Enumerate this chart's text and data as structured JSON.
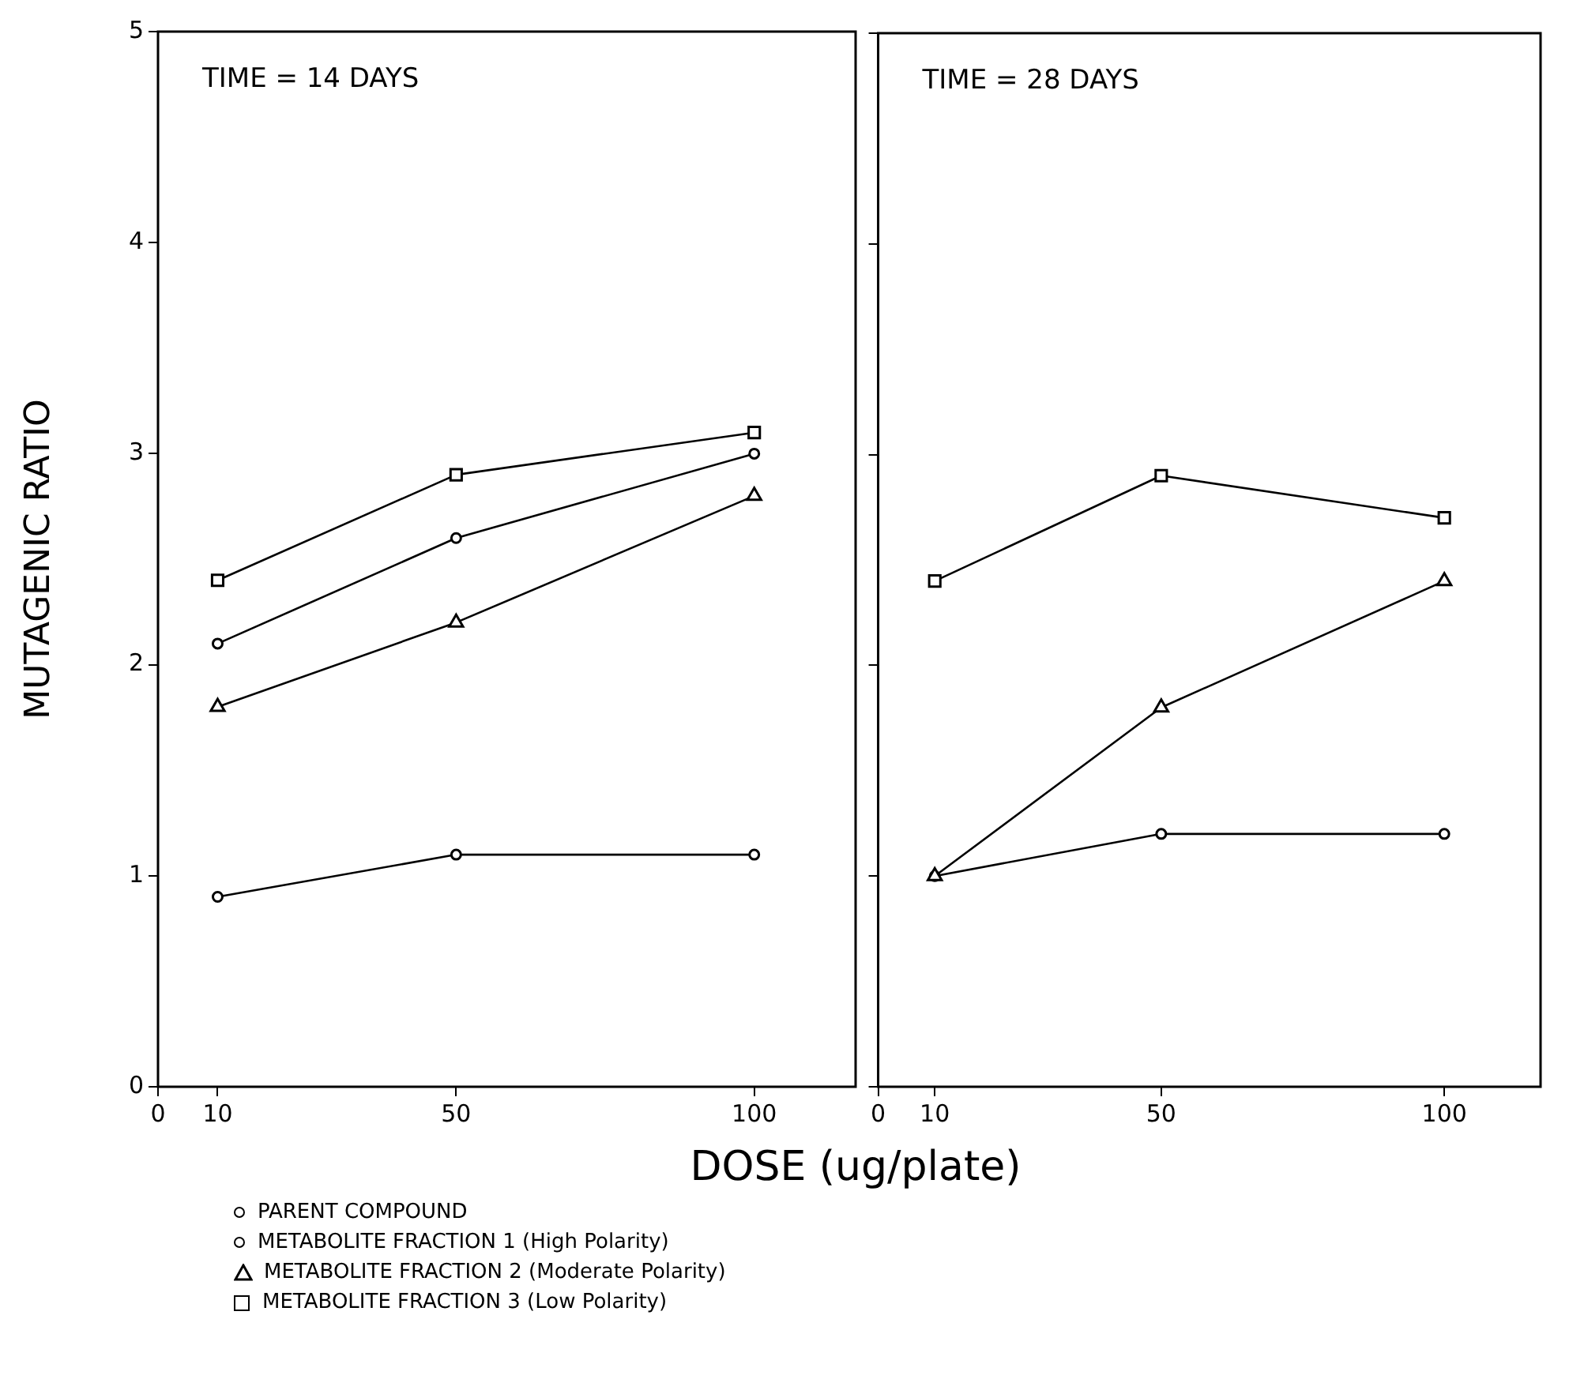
{
  "chart_data": [
    {
      "type": "line",
      "ylabel": "MUTAGENIC RATIO",
      "xlabel": "DOSE (ug/plate)",
      "annotations": [
        "TIME = 14 DAYS"
      ],
      "x": [
        10,
        50,
        100
      ],
      "xlim": [
        0,
        117
      ],
      "xticks": [
        0,
        10,
        50,
        100
      ],
      "ylim": [
        0,
        5
      ],
      "yticks": [
        0,
        1,
        2,
        3,
        4,
        5
      ],
      "grid": false,
      "legend": "bottom",
      "series": [
        {
          "name": "PARENT COMPOUND",
          "color": "#000000",
          "marker": "circle",
          "values": [
            2.1,
            2.6,
            3.0
          ]
        },
        {
          "name": "METABOLITE FRACTION 1 (High Polarity)",
          "color": "#000000",
          "marker": "circle",
          "values": [
            0.9,
            1.1,
            1.1
          ]
        },
        {
          "name": "METABOLITE FRACTION 2 (Moderate Polarity)",
          "color": "#000000",
          "marker": "triangle",
          "values": [
            1.8,
            2.2,
            2.8
          ]
        },
        {
          "name": "METABOLITE FRACTION 3 (Low Polarity)",
          "color": "#000000",
          "marker": "square",
          "values": [
            2.4,
            2.9,
            3.1
          ]
        }
      ]
    },
    {
      "type": "line",
      "annotations": [
        "TIME = 28 DAYS"
      ],
      "x": [
        10,
        50,
        100
      ],
      "xlim": [
        0,
        117
      ],
      "xticks": [
        0,
        10,
        50,
        100
      ],
      "ylim": [
        0,
        5
      ],
      "yticks": [
        0,
        1,
        2,
        3,
        4,
        5
      ],
      "grid": false,
      "tick_labels": "x",
      "series": [
        {
          "color": "#000000",
          "marker": "triangle",
          "values": [
            1.0,
            1.8,
            2.4
          ]
        },
        {
          "color": "#000000",
          "marker": "circle",
          "values": [
            1.0,
            1.2,
            1.2
          ]
        },
        {
          "color": "#000000",
          "marker": "square",
          "values": [
            2.4,
            2.9,
            2.7
          ]
        }
      ]
    }
  ]
}
